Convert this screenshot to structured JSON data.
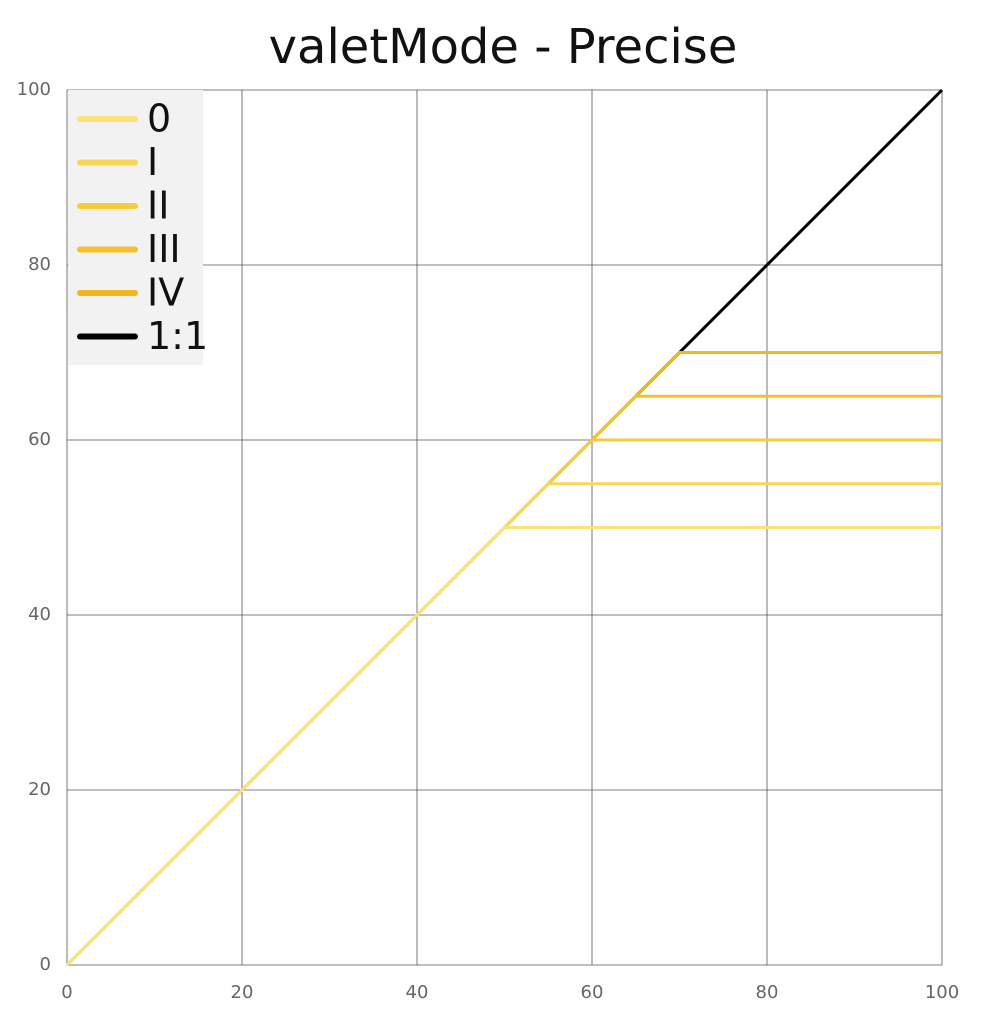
{
  "chart_data": {
    "type": "line",
    "title": "valetMode - Precise",
    "series": [
      {
        "name": "1:1",
        "color": "#000000",
        "x": [
          0,
          100
        ],
        "values": [
          0,
          100
        ]
      },
      {
        "name": "IV",
        "color": "#f2b71a",
        "x": [
          0,
          70,
          100
        ],
        "values": [
          0,
          70,
          70
        ]
      },
      {
        "name": "III",
        "color": "#f5c12a",
        "x": [
          0,
          65,
          100
        ],
        "values": [
          0,
          65,
          65
        ]
      },
      {
        "name": "II",
        "color": "#f7cb3a",
        "x": [
          0,
          60,
          100
        ],
        "values": [
          0,
          60,
          60
        ]
      },
      {
        "name": "I",
        "color": "#f9d65a",
        "x": [
          0,
          55,
          100
        ],
        "values": [
          0,
          55,
          55
        ]
      },
      {
        "name": "0",
        "color": "#fbe17a",
        "x": [
          0,
          50,
          100
        ],
        "values": [
          0,
          50,
          50
        ]
      }
    ],
    "xlim": [
      0,
      100
    ],
    "xticks": [
      0,
      20,
      40,
      60,
      80,
      100
    ],
    "ylim": [
      0,
      100
    ],
    "yticks": [
      0,
      20,
      40,
      60,
      80,
      100
    ],
    "grid": true,
    "legend": "upper left"
  }
}
